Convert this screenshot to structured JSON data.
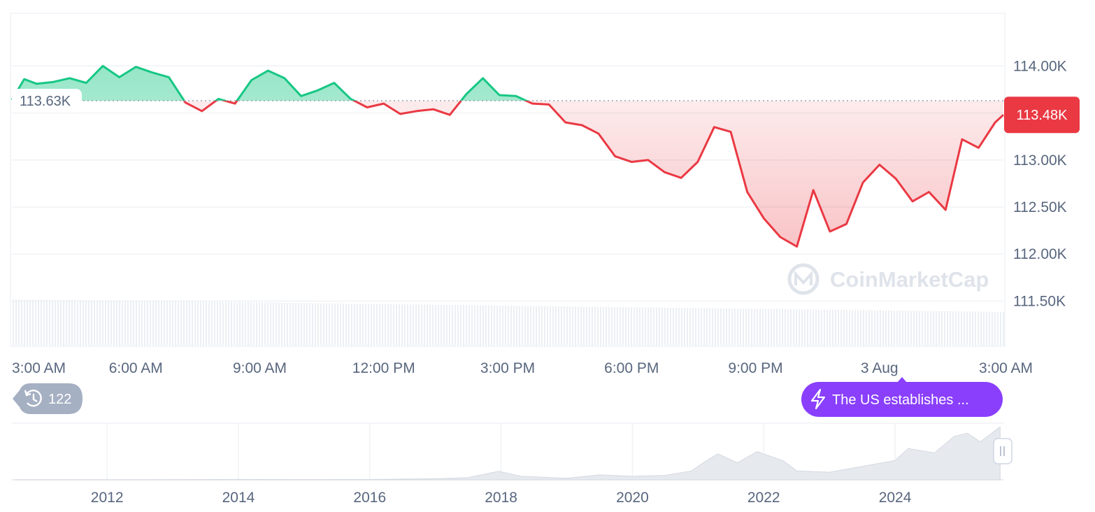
{
  "chart_data": [
    {
      "type": "area",
      "baseline": 113630,
      "baseline_label": "113.63K",
      "current_price": 113480,
      "current_price_label": "113.48K",
      "y_ticks": [
        111500,
        112000,
        112500,
        113000,
        113500,
        114000
      ],
      "y_tick_labels": [
        "111.50K",
        "112.00K",
        "112.50K",
        "113.00K",
        "",
        "114.00K"
      ],
      "y_range": [
        111020,
        114560
      ],
      "x_tick_labels": [
        "3:00 AM",
        "6:00 AM",
        "9:00 AM",
        "12:00 PM",
        "3:00 PM",
        "6:00 PM",
        "9:00 PM",
        "3 Aug",
        "3:00 AM"
      ],
      "x_tick_hours": [
        0,
        3,
        6,
        9,
        12,
        15,
        18,
        21,
        24
      ],
      "hours_range": [
        0,
        24
      ],
      "colors": {
        "up": "#16c784",
        "down": "#ea3943",
        "price_badge": "#ea3943",
        "grid": "#eff2f5"
      },
      "series": [
        {
          "x": [
            0,
            0.3,
            0.6,
            1.0,
            1.4,
            1.8,
            2.2,
            2.6,
            3.0,
            3.4,
            3.8,
            4.2,
            4.6,
            5.0,
            5.4,
            5.8,
            6.2,
            6.6,
            7.0,
            7.4,
            7.8,
            8.2,
            8.6,
            9.0,
            9.4,
            9.8,
            10.2,
            10.6,
            11.0,
            11.4,
            11.8,
            12.2,
            12.6,
            13.0,
            13.4,
            13.8,
            14.2,
            14.6,
            15.0,
            15.4,
            15.8,
            16.2,
            16.6,
            17.0,
            17.4,
            17.8,
            18.2,
            18.6,
            19.0,
            19.4,
            19.8,
            20.2,
            20.6,
            21.0,
            21.4,
            21.8,
            22.2,
            22.6,
            23.0,
            23.4,
            23.8,
            24.0
          ],
          "y": [
            113640,
            113860,
            113810,
            113830,
            113870,
            113820,
            114000,
            113880,
            113990,
            113930,
            113880,
            113610,
            113520,
            113650,
            113600,
            113850,
            113950,
            113870,
            113680,
            113740,
            113820,
            113650,
            113560,
            113600,
            113490,
            113520,
            113540,
            113480,
            113700,
            113870,
            113690,
            113680,
            113600,
            113590,
            113400,
            113370,
            113280,
            113040,
            112980,
            113000,
            112870,
            112810,
            112980,
            113350,
            113300,
            112660,
            112380,
            112180,
            112080,
            112680,
            112240,
            112320,
            112760,
            112950,
            112800,
            112560,
            112660,
            112470,
            113220,
            113130,
            113400,
            113480
          ]
        }
      ]
    },
    {
      "type": "area",
      "x_tick_labels": [
        "2012",
        "2014",
        "2016",
        "2018",
        "2020",
        "2022",
        "2024"
      ],
      "x_ticks": [
        2012,
        2014,
        2016,
        2018,
        2020,
        2022,
        2024
      ],
      "x_range": [
        2010.55,
        2025.65
      ],
      "y_range": [
        0,
        120000
      ],
      "series": [
        {
          "x": [
            2010.6,
            2012,
            2013,
            2014,
            2015,
            2016,
            2017,
            2017.5,
            2017.96,
            2018.3,
            2019,
            2019.5,
            2020,
            2020.5,
            2020.9,
            2021.1,
            2021.3,
            2021.6,
            2021.9,
            2022.3,
            2022.5,
            2023,
            2023.5,
            2024,
            2024.2,
            2024.6,
            2024.9,
            2025.1,
            2025.3,
            2025.6
          ],
          "y": [
            100,
            200,
            300,
            900,
            600,
            800,
            2500,
            5000,
            19000,
            8000,
            3600,
            11000,
            8000,
            10000,
            20000,
            40000,
            58000,
            38000,
            63000,
            42000,
            20000,
            17000,
            30000,
            43000,
            70000,
            60000,
            97000,
            104000,
            85000,
            118000
          ]
        }
      ]
    }
  ],
  "history_badge": {
    "icon": "history-icon",
    "count": "122"
  },
  "news_badge": {
    "icon": "lightning-icon",
    "label": "The US establishes ...",
    "color": "#8a3ffc"
  },
  "watermark": {
    "icon": "coinmarketcap-logo",
    "text": "CoinMarketCap"
  }
}
